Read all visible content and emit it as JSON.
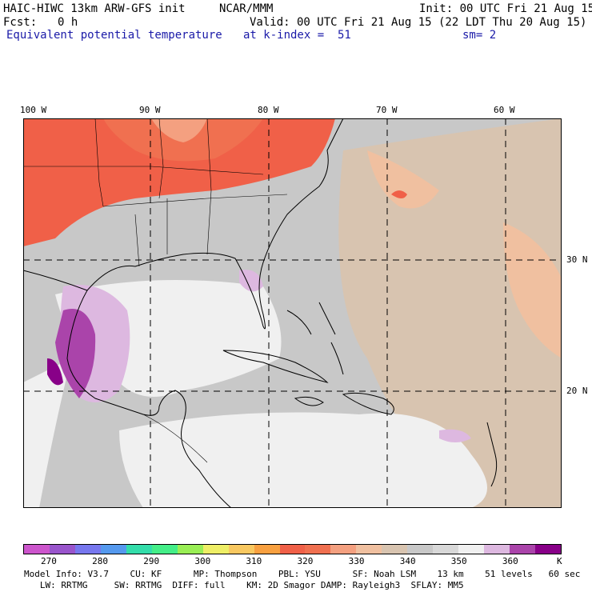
{
  "header": {
    "model_title": "HAIC-HIWC 13km ARW-GFS init",
    "org": "NCAR/MMM",
    "init": "Init: 00 UTC Fri 21 Aug 15",
    "fcst_label": "Fcst:",
    "fcst_value": "0 h",
    "valid": "Valid: 00 UTC Fri 21 Aug 15 (22 LDT Thu 20 Aug 15)",
    "field": "Equivalent potential temperature",
    "level": "at k-index =  51",
    "smoothing": "sm= 2"
  },
  "axes": {
    "longitudes": [
      "100 W",
      "90 W",
      "80 W",
      "70 W",
      "60 W"
    ],
    "latitudes": [
      "30 N",
      "20 N"
    ]
  },
  "colorbar": {
    "labels": [
      "270",
      "280",
      "290",
      "300",
      "310",
      "320",
      "330",
      "340",
      "350",
      "360"
    ],
    "units": "K",
    "colors": [
      "#cc55cc",
      "#9955cc",
      "#7777ee",
      "#5599ee",
      "#33ddaa",
      "#44ee88",
      "#99ee55",
      "#eeee66",
      "#f8c860",
      "#f8a040",
      "#f06048",
      "#f07050",
      "#f4a080",
      "#f0c0a0",
      "#d8c4b0",
      "#c8c8c8",
      "#d8d8d8",
      "#f0f0f0",
      "#ddb8e0",
      "#aa44aa",
      "#880088"
    ]
  },
  "footer": {
    "line1": "Model Info: V3.7    CU: KF      MP: Thompson    PBL: YSU      SF: Noah LSM    13 km    51 levels   60 sec",
    "line2": "   LW: RRTMG     SW: RRTMG  DIFF: full    KM: 2D Smagor DAMP: Rayleigh3  SFLAY: MM5"
  },
  "map_icon": "map-region-icon"
}
